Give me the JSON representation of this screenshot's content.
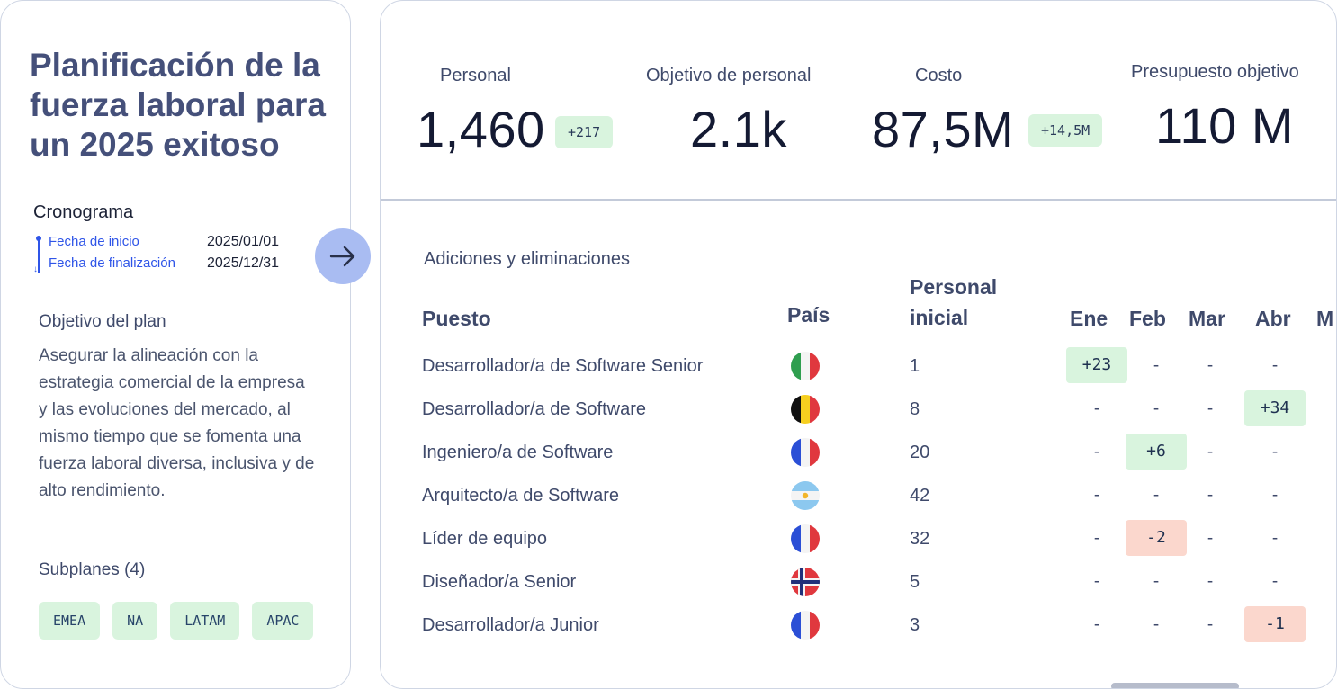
{
  "plan": {
    "title": "Planificación de la fuerza laboral para un 2025 exitoso",
    "timeline": {
      "title": "Cronograma",
      "start_label": "Fecha de inicio",
      "start_value": "2025/01/01",
      "end_label": "Fecha de finalización",
      "end_value": "2025/12/31"
    },
    "objective_title": "Objetivo del plan",
    "objective_text": "Asegurar la alineación con la estrategia comercial de la empresa y las evoluciones del mercado, al mismo tiempo que se fomenta una fuerza laboral diversa, inclusiva y de alto rendimiento.",
    "subplans_title": "Subplanes (4)",
    "subplans": [
      "EMEA",
      "NA",
      "LATAM",
      "APAC"
    ],
    "go_icon": "arrow-right-icon"
  },
  "kpis": {
    "personal": {
      "label": "Personal",
      "value": "1,460",
      "badge": "+217"
    },
    "objetivo_personal": {
      "label": "Objetivo de personal",
      "value": "2.1k"
    },
    "costo": {
      "label": "Costo",
      "value": "87,5M",
      "badge": "+14,5M"
    },
    "presupuesto": {
      "label": "Presupuesto objetivo",
      "value": "110 M"
    }
  },
  "table": {
    "title": "Adiciones y eliminaciones",
    "headers": {
      "puesto": "Puesto",
      "pais": "País",
      "personal_inicial_1": "Personal",
      "personal_inicial_2": "inicial",
      "months": [
        "Ene",
        "Feb",
        "Mar",
        "Abr",
        "M"
      ]
    },
    "rows": [
      {
        "puesto": "Desarrollador/a de Software Senior",
        "flag": "italy-flag-icon",
        "inicial": "1",
        "months": [
          "+23",
          "-",
          "-",
          "-"
        ]
      },
      {
        "puesto": "Desarrollador/a de Software",
        "flag": "belgium-flag-icon",
        "inicial": "8",
        "months": [
          "-",
          "-",
          "-",
          "+34"
        ]
      },
      {
        "puesto": "Ingeniero/a de Software",
        "flag": "france-flag-icon",
        "inicial": "20",
        "months": [
          "-",
          "+6",
          "-",
          "-"
        ]
      },
      {
        "puesto": "Arquitecto/a de Software",
        "flag": "argentina-flag-icon",
        "inicial": "42",
        "months": [
          "-",
          "-",
          "-",
          "-"
        ]
      },
      {
        "puesto": "Líder de equipo",
        "flag": "france-flag-icon",
        "inicial": "32",
        "months": [
          "-",
          "-2",
          "-",
          "-"
        ]
      },
      {
        "puesto": "Diseñador/a Senior",
        "flag": "norway-flag-icon",
        "inicial": "5",
        "months": [
          "-",
          "-",
          "-",
          "-"
        ]
      },
      {
        "puesto": "Desarrollador/a Junior",
        "flag": "france-flag-icon",
        "inicial": "3",
        "months": [
          "-",
          "-",
          "-",
          "-1"
        ]
      }
    ]
  },
  "colors": {
    "positive_bg": "#d9f4de",
    "negative_bg": "#fbd7cd",
    "accent_blue": "#2f55e8",
    "button_bg": "#a9bcf2"
  }
}
